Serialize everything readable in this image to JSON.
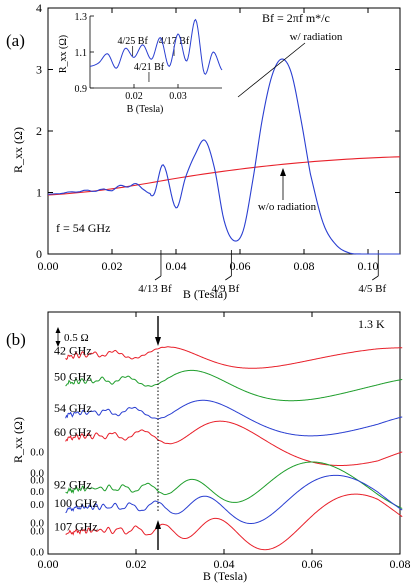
{
  "chart_data": [
    {
      "type": "line",
      "panel_label": "(a)",
      "xlabel": "B (Tesla)",
      "ylabel": "R_xx (Ω)",
      "xlim": [
        0.0,
        0.11
      ],
      "ylim": [
        0,
        4
      ],
      "x_ticks": [
        "0.00",
        "0.02",
        "0.04",
        "0.06",
        "0.08",
        "0.10"
      ],
      "y_ticks": [
        "0",
        "1",
        "2",
        "3",
        "4"
      ],
      "formula_label": "Bf = 2πf m*/c",
      "frequency_label": "f = 54 GHz",
      "fraction_markers": [
        {
          "label": "4/13 Bf",
          "x": 0.0353
        },
        {
          "label": "4/9 Bf",
          "x": 0.0573
        },
        {
          "label": "4/5 Bf",
          "x": 0.1032
        }
      ],
      "annotations": [
        "w/ radiation",
        "w/o radiation"
      ],
      "series": [
        {
          "name": "w/o radiation",
          "color": "#e8202a",
          "x": [
            0.0,
            0.01,
            0.02,
            0.03,
            0.04,
            0.05,
            0.06,
            0.07,
            0.08,
            0.09,
            0.1,
            0.11
          ],
          "y": [
            0.96,
            1.0,
            1.06,
            1.14,
            1.23,
            1.31,
            1.38,
            1.44,
            1.49,
            1.53,
            1.56,
            1.58
          ]
        },
        {
          "name": "w/ radiation",
          "color": "#2a3fd1",
          "x": [
            0.0,
            0.01,
            0.02,
            0.025,
            0.03,
            0.033,
            0.036,
            0.04,
            0.043,
            0.046,
            0.049,
            0.052,
            0.055,
            0.058,
            0.061,
            0.064,
            0.067,
            0.07,
            0.073,
            0.076,
            0.079,
            0.082,
            0.086,
            0.09,
            0.094,
            0.098,
            0.102,
            0.106,
            0.11
          ],
          "y": [
            0.97,
            1.02,
            1.05,
            1.12,
            1.08,
            0.96,
            1.45,
            0.75,
            1.25,
            1.62,
            1.85,
            1.4,
            0.55,
            0.22,
            0.38,
            1.2,
            2.2,
            2.9,
            3.17,
            2.95,
            2.2,
            1.3,
            0.5,
            0.15,
            0.02,
            0.0,
            0.0,
            0.0,
            0.0
          ]
        }
      ],
      "inset": {
        "xlabel": "B (Tesla)",
        "ylabel": "R_xx (Ω)",
        "xlim": [
          0.01,
          0.04
        ],
        "ylim": [
          0.9,
          1.3
        ],
        "x_ticks": [
          "0.02",
          "0.03"
        ],
        "y_ticks": [
          "0.9",
          "1.1",
          "1.3"
        ],
        "fraction_markers": [
          {
            "label": "4/25 Bf",
            "x": 0.0197
          },
          {
            "label": "4/21 Bf",
            "x": 0.0234
          },
          {
            "label": "4/17 Bf",
            "x": 0.0291
          }
        ],
        "series": [
          {
            "name": "w/ radiation",
            "color": "#2a3fd1",
            "x": [
              0.01,
              0.012,
              0.014,
              0.016,
              0.018,
              0.02,
              0.022,
              0.024,
              0.026,
              0.028,
              0.03,
              0.032,
              0.034,
              0.036,
              0.038,
              0.04
            ],
            "y": [
              1.02,
              1.04,
              1.09,
              1.01,
              1.12,
              1.07,
              1.14,
              1.06,
              1.18,
              1.02,
              1.2,
              1.05,
              1.28,
              0.98,
              1.1,
              1.0
            ]
          }
        ]
      }
    },
    {
      "type": "line",
      "panel_label": "(b)",
      "xlabel": "B (Tesla)",
      "ylabel": "R_xx (Ω)",
      "xlim": [
        0.0,
        0.08
      ],
      "x_ticks": [
        "0.00",
        "0.02",
        "0.04",
        "0.06",
        "0.08"
      ],
      "scale_bar_label": "0.5 Ω",
      "temperature_label": "1.3 K",
      "dotted_line_x": 0.025,
      "offset_zero_labels": [
        {
          "label": "0.0",
          "color": "#e8202a"
        },
        {
          "label": "0.0",
          "color": "#1f9e2c"
        },
        {
          "label": "0.0",
          "color": "#e8202a"
        },
        {
          "label": "0.0",
          "color": "#2a3fd1"
        },
        {
          "label": "0.0",
          "color": "#2a3fd1"
        },
        {
          "label": "0.0",
          "color": "#1f9e2c"
        },
        {
          "label": "0.0",
          "color": "#2a3fd1"
        },
        {
          "label": "0.0",
          "color": "#e8202a"
        }
      ],
      "series": [
        {
          "name": "42 GHz",
          "color": "#e8202a",
          "freq": 42,
          "offset": 3.7
        },
        {
          "name": "50 GHz",
          "color": "#1f9e2c",
          "freq": 50,
          "offset": 3.2
        },
        {
          "name": "54 GHz",
          "color": "#2a3fd1",
          "freq": 54,
          "offset": 2.6
        },
        {
          "name": "60 GHz",
          "color": "#e8202a",
          "freq": 60,
          "offset": 2.15
        },
        {
          "name": "92 GHz",
          "color": "#1f9e2c",
          "freq": 92,
          "offset": 1.15
        },
        {
          "name": "100 GHz",
          "color": "#2a3fd1",
          "freq": 100,
          "offset": 0.8
        },
        {
          "name": "107 GHz",
          "color": "#e8202a",
          "freq": 107,
          "offset": 0.35
        }
      ]
    }
  ]
}
